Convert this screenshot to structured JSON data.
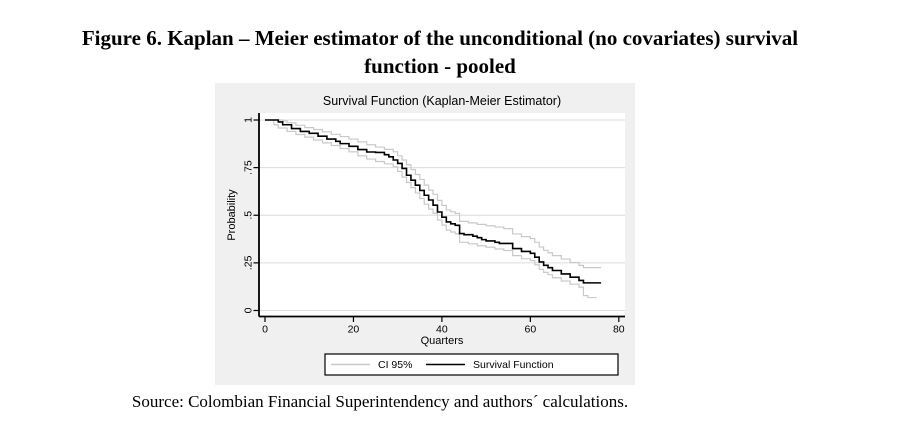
{
  "figure": {
    "title_line1": "Figure 6. Kaplan – Meier estimator of the unconditional (no covariates) survival",
    "title_line2": "function - pooled",
    "source": "Source: Colombian Financial Superintendency and authors´ calculations."
  },
  "chart_data": {
    "type": "line",
    "subtype": "step-after",
    "title": "Survival Function (Kaplan-Meier Estimator)",
    "xlabel": "Quarters",
    "ylabel": "Probability",
    "xlim": [
      0,
      80
    ],
    "ylim": [
      0,
      1
    ],
    "xticks": {
      "values": [
        0,
        20,
        40,
        60,
        80
      ],
      "labels": [
        "0",
        "20",
        "40",
        "60",
        "80"
      ]
    },
    "yticks": {
      "values": [
        0,
        0.25,
        0.5,
        0.75,
        1
      ],
      "labels": [
        "0",
        ".25",
        ".5",
        ".75",
        "1"
      ]
    },
    "grid": "horizontal",
    "colors": {
      "panel_bg": "#f0f0f0",
      "plot_bg": "#ffffff",
      "grid": "#dcdcdc",
      "axis": "#000000",
      "survival_line": "#000000",
      "ci_line": "#c9c9c9"
    },
    "legend": {
      "position": "bottom",
      "entries": [
        {
          "label": "CI 95%",
          "color": "#c9c9c9"
        },
        {
          "label": "Survival Function",
          "color": "#000000"
        }
      ]
    },
    "series": [
      {
        "name": "CI 95% upper",
        "color": "#c9c9c9",
        "width": 1.2,
        "points": [
          [
            0,
            1
          ],
          [
            4,
            0.995
          ],
          [
            5,
            0.985
          ],
          [
            7,
            0.972
          ],
          [
            9,
            0.96
          ],
          [
            11,
            0.95
          ],
          [
            13,
            0.938
          ],
          [
            15,
            0.925
          ],
          [
            17,
            0.913
          ],
          [
            19,
            0.9
          ],
          [
            21,
            0.885
          ],
          [
            23,
            0.87
          ],
          [
            25,
            0.858
          ],
          [
            27,
            0.846
          ],
          [
            29,
            0.833
          ],
          [
            30,
            0.812
          ],
          [
            31,
            0.79
          ],
          [
            32,
            0.765
          ],
          [
            33,
            0.74
          ],
          [
            34,
            0.714
          ],
          [
            35,
            0.688
          ],
          [
            36,
            0.658
          ],
          [
            37,
            0.632
          ],
          [
            38,
            0.61
          ],
          [
            39,
            0.578
          ],
          [
            40,
            0.552
          ],
          [
            41,
            0.528
          ],
          [
            42,
            0.518
          ],
          [
            43,
            0.51
          ],
          [
            44,
            0.468
          ],
          [
            46,
            0.46
          ],
          [
            48,
            0.452
          ],
          [
            50,
            0.445
          ],
          [
            52,
            0.438
          ],
          [
            54,
            0.43
          ],
          [
            56,
            0.402
          ],
          [
            58,
            0.388
          ],
          [
            60,
            0.378
          ],
          [
            61,
            0.358
          ],
          [
            62,
            0.333
          ],
          [
            63,
            0.316
          ],
          [
            64,
            0.303
          ],
          [
            65,
            0.288
          ],
          [
            67,
            0.27
          ],
          [
            69,
            0.252
          ],
          [
            71,
            0.237
          ],
          [
            72,
            0.225
          ],
          [
            76,
            0.225
          ]
        ]
      },
      {
        "name": "CI 95% lower",
        "color": "#c9c9c9",
        "width": 1.2,
        "points": [
          [
            0,
            1
          ],
          [
            2,
            0.975
          ],
          [
            3,
            0.958
          ],
          [
            5,
            0.94
          ],
          [
            7,
            0.924
          ],
          [
            9,
            0.91
          ],
          [
            11,
            0.895
          ],
          [
            13,
            0.88
          ],
          [
            15,
            0.866
          ],
          [
            17,
            0.85
          ],
          [
            19,
            0.833
          ],
          [
            21,
            0.812
          ],
          [
            23,
            0.795
          ],
          [
            25,
            0.782
          ],
          [
            27,
            0.77
          ],
          [
            29,
            0.755
          ],
          [
            30,
            0.73
          ],
          [
            31,
            0.7
          ],
          [
            32,
            0.672
          ],
          [
            33,
            0.645
          ],
          [
            34,
            0.617
          ],
          [
            35,
            0.588
          ],
          [
            36,
            0.558
          ],
          [
            37,
            0.532
          ],
          [
            38,
            0.51
          ],
          [
            39,
            0.475
          ],
          [
            40,
            0.448
          ],
          [
            41,
            0.422
          ],
          [
            42,
            0.412
          ],
          [
            43,
            0.403
          ],
          [
            44,
            0.358
          ],
          [
            46,
            0.35
          ],
          [
            48,
            0.34
          ],
          [
            50,
            0.332
          ],
          [
            52,
            0.323
          ],
          [
            54,
            0.315
          ],
          [
            56,
            0.288
          ],
          [
            58,
            0.272
          ],
          [
            60,
            0.262
          ],
          [
            61,
            0.24
          ],
          [
            62,
            0.216
          ],
          [
            63,
            0.2
          ],
          [
            64,
            0.188
          ],
          [
            65,
            0.172
          ],
          [
            67,
            0.155
          ],
          [
            69,
            0.138
          ],
          [
            71,
            0.122
          ],
          [
            72,
            0.078
          ],
          [
            73,
            0.068
          ],
          [
            75,
            0.068
          ]
        ]
      },
      {
        "name": "Survival Function",
        "color": "#000000",
        "width": 1.6,
        "points": [
          [
            0,
            1
          ],
          [
            3,
            0.99
          ],
          [
            4,
            0.975
          ],
          [
            6,
            0.955
          ],
          [
            8,
            0.94
          ],
          [
            10,
            0.93
          ],
          [
            12,
            0.915
          ],
          [
            14,
            0.9
          ],
          [
            16,
            0.888
          ],
          [
            17,
            0.876
          ],
          [
            19,
            0.862
          ],
          [
            21,
            0.845
          ],
          [
            23,
            0.832
          ],
          [
            25,
            0.83
          ],
          [
            27,
            0.818
          ],
          [
            28,
            0.807
          ],
          [
            29,
            0.79
          ],
          [
            30,
            0.772
          ],
          [
            31,
            0.746
          ],
          [
            32,
            0.71
          ],
          [
            33,
            0.684
          ],
          [
            34,
            0.658
          ],
          [
            35,
            0.63
          ],
          [
            36,
            0.605
          ],
          [
            37,
            0.58
          ],
          [
            38,
            0.553
          ],
          [
            39,
            0.517
          ],
          [
            40,
            0.49
          ],
          [
            41,
            0.465
          ],
          [
            42,
            0.455
          ],
          [
            43,
            0.447
          ],
          [
            44,
            0.404
          ],
          [
            45,
            0.398
          ],
          [
            47,
            0.39
          ],
          [
            48,
            0.382
          ],
          [
            49,
            0.372
          ],
          [
            50,
            0.365
          ],
          [
            52,
            0.358
          ],
          [
            53,
            0.352
          ],
          [
            56,
            0.325
          ],
          [
            58,
            0.31
          ],
          [
            60,
            0.3
          ],
          [
            61,
            0.28
          ],
          [
            62,
            0.255
          ],
          [
            63,
            0.237
          ],
          [
            64,
            0.225
          ],
          [
            65,
            0.21
          ],
          [
            67,
            0.192
          ],
          [
            69,
            0.175
          ],
          [
            71,
            0.158
          ],
          [
            72,
            0.145
          ],
          [
            76,
            0.145
          ]
        ]
      }
    ]
  }
}
